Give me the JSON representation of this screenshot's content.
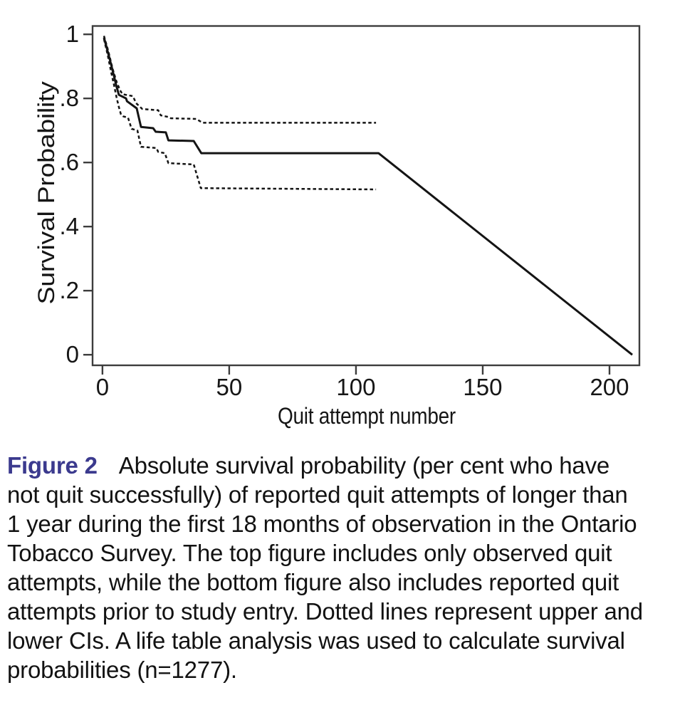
{
  "figure": {
    "caption": {
      "label": "Figure 2",
      "label_color": "#3b3a8e",
      "text_color": "#121212",
      "lines": [
        "Absolute survival probability (per cent who have",
        "not quit successfully) of reported quit attempts of longer than",
        "1 year during the first 18 months of observation in the Ontario",
        "Tobacco Survey. The top figure includes only observed quit",
        "attempts, while the bottom figure also includes reported quit",
        "attempts prior to study entry. Dotted lines represent upper and",
        "lower CIs. A life table analysis was used to calculate survival",
        "probabilities (n=1277)."
      ]
    }
  },
  "chart_data": {
    "type": "line",
    "title": "",
    "xlabel": "Quit attempt number",
    "ylabel": "Survival Probability",
    "xlim": [
      -3.9,
      211.8
    ],
    "ylim": [
      -0.033,
      1.026
    ],
    "grid": false,
    "legend_position": "none",
    "axis_color": "#3d3d3d",
    "line_color": "#141414",
    "x_ticks": [
      {
        "value": 0,
        "label": "0"
      },
      {
        "value": 50,
        "label": "50"
      },
      {
        "value": 100,
        "label": "100"
      },
      {
        "value": 150,
        "label": "150"
      },
      {
        "value": 200,
        "label": "200"
      }
    ],
    "y_ticks": [
      {
        "value": 1.0,
        "label": "1"
      },
      {
        "value": 0.8,
        "label": ".8"
      },
      {
        "value": 0.6,
        "label": ".6"
      },
      {
        "value": 0.4,
        "label": ".4"
      },
      {
        "value": 0.2,
        "label": ".2"
      },
      {
        "value": 0.0,
        "label": "0"
      }
    ],
    "series": [
      {
        "name": "Survival probability (life table estimate)",
        "style": "solid",
        "points": [
          [
            0.6,
            0.99
          ],
          [
            1.7,
            0.958
          ],
          [
            3.2,
            0.912
          ],
          [
            4.6,
            0.868
          ],
          [
            5.5,
            0.838
          ],
          [
            6.5,
            0.811
          ],
          [
            9.3,
            0.8
          ],
          [
            9.7,
            0.791
          ],
          [
            13.5,
            0.769
          ],
          [
            15.2,
            0.711
          ],
          [
            20,
            0.707
          ],
          [
            21,
            0.696
          ],
          [
            25,
            0.694
          ],
          [
            26,
            0.669
          ],
          [
            36,
            0.667
          ],
          [
            39,
            0.629
          ],
          [
            108.9,
            0.629
          ],
          [
            209,
            0
          ]
        ]
      },
      {
        "name": "Upper CI",
        "style": "dotted",
        "points": [
          [
            0.6,
            0.995
          ],
          [
            2.3,
            0.948
          ],
          [
            4,
            0.893
          ],
          [
            5.5,
            0.853
          ],
          [
            6.9,
            0.826
          ],
          [
            7.9,
            0.813
          ],
          [
            12,
            0.807
          ],
          [
            13.3,
            0.785
          ],
          [
            15.7,
            0.767
          ],
          [
            22,
            0.763
          ],
          [
            23,
            0.747
          ],
          [
            26,
            0.742
          ],
          [
            27,
            0.738
          ],
          [
            37,
            0.736
          ],
          [
            39.5,
            0.724
          ],
          [
            107.9,
            0.724
          ]
        ]
      },
      {
        "name": "Lower CI",
        "style": "dotted",
        "points": [
          [
            0.6,
            0.985
          ],
          [
            2,
            0.938
          ],
          [
            3.5,
            0.88
          ],
          [
            4.6,
            0.84
          ],
          [
            5.5,
            0.805
          ],
          [
            6.4,
            0.775
          ],
          [
            7.3,
            0.75
          ],
          [
            8.2,
            0.744
          ],
          [
            10.1,
            0.74
          ],
          [
            11.5,
            0.705
          ],
          [
            13.8,
            0.7
          ],
          [
            15.2,
            0.649
          ],
          [
            21.3,
            0.645
          ],
          [
            22,
            0.633
          ],
          [
            24.6,
            0.629
          ],
          [
            26,
            0.598
          ],
          [
            36,
            0.594
          ],
          [
            38.8,
            0.52
          ],
          [
            107.9,
            0.516
          ]
        ]
      }
    ]
  }
}
